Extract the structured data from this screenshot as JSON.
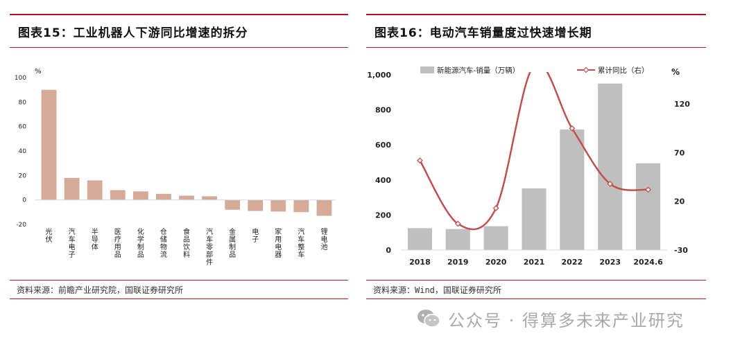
{
  "left_panel": {
    "title": "图表15：工业机器人下游同比增速的拆分",
    "source": "资料来源：前瞻产业研究院，国联证券研究所"
  },
  "right_panel": {
    "title": "图表16：电动汽车销量度过快速增长期",
    "source": "资料来源：Wind，国联证券研究所"
  },
  "watermark": {
    "text": "公众号 · 得算多未来产业研究",
    "icon": "wechat-icon"
  },
  "chart_data": [
    {
      "type": "bar",
      "title": "",
      "ylabel": "%",
      "ylim": [
        -20,
        100
      ],
      "yticks": [
        -20,
        0,
        20,
        40,
        60,
        80,
        100
      ],
      "grid": false,
      "color": "#d4aa98",
      "categories": [
        "光伏",
        "汽车电子",
        "半导体",
        "医疗用品",
        "化学制品",
        "仓储物流",
        "食品饮料",
        "汽车零部件",
        "金属制品",
        "电子",
        "家用电器",
        "汽车整车",
        "锂电池"
      ],
      "values": [
        90,
        18,
        16,
        8,
        7,
        5,
        3.5,
        3,
        -8,
        -9,
        -9.5,
        -10,
        -13
      ]
    },
    {
      "type": "bar+line",
      "title": "",
      "categories": [
        "2018",
        "2019",
        "2020",
        "2021",
        "2022",
        "2023",
        "2024.6"
      ],
      "series": [
        {
          "name": "新能源汽车-销量（万辆）",
          "type": "bar",
          "axis": "left",
          "color": "#bfbfbf",
          "values": [
            125,
            120,
            136,
            352,
            688,
            950,
            495
          ]
        },
        {
          "name": "累计同比（右）",
          "type": "line",
          "axis": "right",
          "color": "#c0504d",
          "values": [
            62,
            -3,
            13,
            160,
            95,
            38,
            32
          ]
        }
      ],
      "y_left": {
        "ylim": [
          0,
          1000
        ],
        "ticks": [
          0,
          200,
          400,
          600,
          800,
          1000
        ],
        "tick_labels": [
          "0",
          "200",
          "400",
          "600",
          "800",
          "1,000"
        ]
      },
      "y_right": {
        "label": "%",
        "ylim": [
          -30,
          150
        ],
        "ticks": [
          -30,
          20,
          70,
          120
        ]
      },
      "legend_placement": "top",
      "grid": false
    }
  ]
}
